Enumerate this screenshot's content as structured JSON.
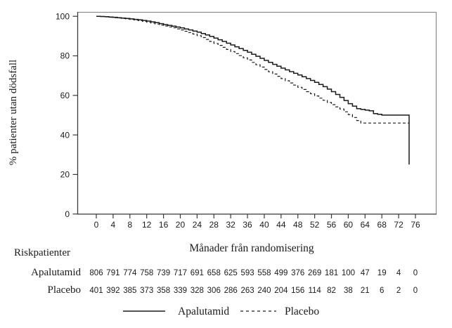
{
  "chart_data": {
    "type": "line",
    "subtype": "kaplan-meier-step",
    "title": "",
    "xlabel": "Månader från randomisering",
    "ylabel": "% patienter utan dödsfall",
    "xlim": [
      0,
      76
    ],
    "ylim": [
      0,
      100
    ],
    "x_ticks": [
      0,
      4,
      8,
      12,
      16,
      20,
      24,
      28,
      32,
      36,
      40,
      44,
      48,
      52,
      56,
      60,
      64,
      68,
      72,
      76
    ],
    "y_ticks": [
      0,
      20,
      40,
      60,
      80,
      100
    ],
    "grid": "off",
    "legend_position": "bottom-center",
    "line_color": "#1a1a1a",
    "frame_color": "#8a8a8a",
    "series": [
      {
        "name": "Apalutamid",
        "style": "solid",
        "points": [
          [
            0,
            100
          ],
          [
            1,
            99.9
          ],
          [
            2,
            99.8
          ],
          [
            4,
            99.5
          ],
          [
            6,
            99.1
          ],
          [
            8,
            98.7
          ],
          [
            10,
            98.2
          ],
          [
            12,
            97.6
          ],
          [
            14,
            96.8
          ],
          [
            16,
            95.8
          ],
          [
            18,
            95.0
          ],
          [
            20,
            94.1
          ],
          [
            22,
            93.1
          ],
          [
            24,
            92.0
          ],
          [
            26,
            90.6
          ],
          [
            28,
            89.0
          ],
          [
            30,
            87.3
          ],
          [
            32,
            85.5
          ],
          [
            34,
            83.7
          ],
          [
            36,
            81.8
          ],
          [
            38,
            79.8
          ],
          [
            40,
            77.7
          ],
          [
            42,
            75.7
          ],
          [
            44,
            73.8
          ],
          [
            46,
            72.0
          ],
          [
            48,
            70.3
          ],
          [
            50,
            68.5
          ],
          [
            52,
            66.6
          ],
          [
            54,
            64.4
          ],
          [
            56,
            61.9
          ],
          [
            58,
            59.0
          ],
          [
            60,
            55.8
          ],
          [
            62,
            53.3
          ],
          [
            65,
            52.2
          ],
          [
            66,
            50.8
          ],
          [
            68,
            50.0
          ],
          [
            74.5,
            50.0
          ],
          [
            74.5,
            25.0
          ]
        ]
      },
      {
        "name": "Placebo",
        "style": "dashed",
        "points": [
          [
            0,
            100
          ],
          [
            1,
            99.9
          ],
          [
            2,
            99.7
          ],
          [
            4,
            99.3
          ],
          [
            6,
            98.9
          ],
          [
            8,
            98.4
          ],
          [
            10,
            97.8
          ],
          [
            12,
            97.0
          ],
          [
            14,
            96.1
          ],
          [
            16,
            95.1
          ],
          [
            18,
            94.2
          ],
          [
            20,
            93.1
          ],
          [
            22,
            91.8
          ],
          [
            24,
            90.2
          ],
          [
            26,
            88.3
          ],
          [
            28,
            86.3
          ],
          [
            30,
            84.3
          ],
          [
            32,
            82.2
          ],
          [
            34,
            80.1
          ],
          [
            36,
            77.9
          ],
          [
            38,
            75.5
          ],
          [
            40,
            73.1
          ],
          [
            42,
            70.8
          ],
          [
            44,
            68.5
          ],
          [
            46,
            66.3
          ],
          [
            48,
            64.1
          ],
          [
            50,
            61.9
          ],
          [
            52,
            59.7
          ],
          [
            54,
            57.5
          ],
          [
            56,
            55.3
          ],
          [
            58,
            53.1
          ],
          [
            60,
            50.3
          ],
          [
            62,
            47.3
          ],
          [
            63,
            46.0
          ],
          [
            74.5,
            46.0
          ]
        ]
      }
    ]
  },
  "risk_table": {
    "title": "Riskpatienter",
    "time_points": [
      0,
      4,
      8,
      12,
      16,
      20,
      24,
      28,
      32,
      36,
      40,
      44,
      48,
      52,
      56,
      60,
      64,
      68,
      72,
      76
    ],
    "rows": [
      {
        "label": "Apalutamid",
        "counts": [
          806,
          791,
          774,
          758,
          739,
          717,
          691,
          658,
          625,
          593,
          558,
          499,
          376,
          269,
          181,
          100,
          47,
          19,
          4,
          0
        ]
      },
      {
        "label": "Placebo",
        "counts": [
          401,
          392,
          385,
          373,
          358,
          339,
          328,
          306,
          286,
          263,
          240,
          204,
          156,
          114,
          82,
          38,
          21,
          6,
          2,
          0
        ]
      }
    ]
  },
  "legend": {
    "entries": [
      {
        "label": "Apalutamid",
        "style": "solid"
      },
      {
        "label": "Placebo",
        "style": "dashed"
      }
    ]
  }
}
